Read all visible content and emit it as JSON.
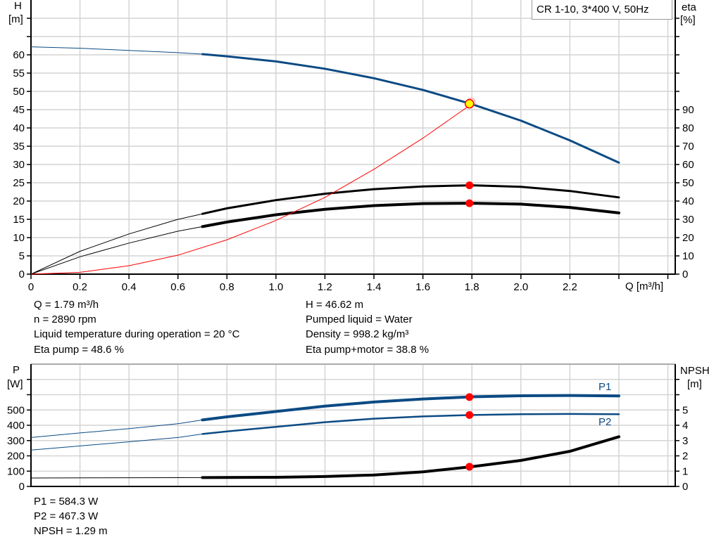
{
  "title": "CR 1-10, 3*400 V, 50Hz",
  "colors": {
    "head": "#0b4a84",
    "efficiency": "#000000",
    "system": "#ff0000",
    "duty_point": "#ffff00",
    "marker": "#ff0000",
    "grid": "#d4d4d4"
  },
  "info_top": {
    "q": "Q = 1.79 m³/h",
    "n": "n = 2890 rpm",
    "temp": "Liquid temperature during operation = 20 °C",
    "eta_pump": "Eta pump = 48.6 %",
    "h": "H = 46.62 m",
    "liquid": "Pumped liquid = Water",
    "density": "Density = 998.2 kg/m³",
    "eta_total": "Eta pump+motor = 38.8 %"
  },
  "info_bottom": {
    "p1": "P1 = 584.3 W",
    "p2": "P2 = 467.3 W",
    "npsh": "NPSH = 1.29 m"
  },
  "chart_data": [
    {
      "type": "line",
      "xlabel": "Q [m³/h]",
      "ylabel_left": [
        "H",
        "[m]"
      ],
      "ylabel_right": [
        "eta",
        "[%]"
      ],
      "xlim": [
        0,
        2.6
      ],
      "ylim_left": [
        0,
        75
      ],
      "ylim_right": [
        0,
        150
      ],
      "grid": true,
      "x_ticks": [
        "0",
        "0.2",
        "0.4",
        "0.6",
        "0.8",
        "1.0",
        "1.2",
        "1.4",
        "1.6",
        "1.8",
        "2.0",
        "2.2"
      ],
      "y_left_ticks": [
        "0",
        "5",
        "10",
        "15",
        "20",
        "25",
        "30",
        "35",
        "40",
        "45",
        "50",
        "55",
        "60"
      ],
      "y_right_ticks": [
        "0",
        "10",
        "20",
        "30",
        "40",
        "50",
        "60",
        "70",
        "80",
        "90"
      ],
      "operating_range_start": 0.7,
      "duty_point": {
        "q": 1.79,
        "h": 46.62,
        "eta_pump": 48.6,
        "eta_total": 38.8
      },
      "series": [
        {
          "key": "H",
          "axis": "left",
          "color": "#0b4a84",
          "x": [
            0,
            0.2,
            0.4,
            0.6,
            0.7,
            0.8,
            1.0,
            1.2,
            1.4,
            1.6,
            1.8,
            2.0,
            2.2,
            2.4
          ],
          "y": [
            62.2,
            61.8,
            61.2,
            60.6,
            60.2,
            59.6,
            58.2,
            56.2,
            53.6,
            50.4,
            46.5,
            42,
            36.6,
            30.5
          ]
        },
        {
          "key": "eta_pump",
          "axis": "right",
          "color": "#000000",
          "x": [
            0,
            0.2,
            0.4,
            0.6,
            0.7,
            0.8,
            1.0,
            1.2,
            1.4,
            1.6,
            1.8,
            2.0,
            2.2,
            2.4
          ],
          "y": [
            0,
            12.5,
            22,
            30,
            33,
            36,
            40.5,
            44,
            46.5,
            48,
            48.6,
            47.8,
            45.5,
            42
          ]
        },
        {
          "key": "eta_total",
          "axis": "right",
          "color": "#000000",
          "x": [
            0,
            0.2,
            0.4,
            0.6,
            0.7,
            0.8,
            1.0,
            1.2,
            1.4,
            1.6,
            1.8,
            2.0,
            2.2,
            2.4
          ],
          "y": [
            0,
            9.5,
            17,
            23.5,
            26,
            28.5,
            32.5,
            35.5,
            37.5,
            38.6,
            38.8,
            38.3,
            36.5,
            33.5
          ]
        },
        {
          "key": "system",
          "axis": "left",
          "color": "#ff0000",
          "x": [
            0,
            0.2,
            0.4,
            0.6,
            0.8,
            1.0,
            1.2,
            1.4,
            1.6,
            1.8
          ],
          "y": [
            0,
            0.5,
            2.3,
            5.2,
            9.4,
            14.7,
            21,
            28.7,
            37.2,
            46.6
          ]
        }
      ]
    },
    {
      "type": "line",
      "ylabel_left": [
        "P",
        "[W]"
      ],
      "ylabel_right": [
        "NPSH",
        "[m]"
      ],
      "xlim": [
        0,
        2.6
      ],
      "ylim_left": [
        0,
        800
      ],
      "ylim_right": [
        0,
        8
      ],
      "grid": true,
      "y_left_ticks": [
        "0",
        "100",
        "200",
        "300",
        "400",
        "500"
      ],
      "y_right_ticks": [
        "0",
        "1",
        "2",
        "3",
        "4",
        "5"
      ],
      "duty_point": {
        "q": 1.79,
        "p1": 584.3,
        "p2": 467.3,
        "npsh": 1.29
      },
      "series": [
        {
          "key": "P1",
          "name": "P1",
          "axis": "left",
          "color": "#0b4a84",
          "x": [
            0,
            0.2,
            0.4,
            0.6,
            0.7,
            0.8,
            1.0,
            1.2,
            1.4,
            1.6,
            1.8,
            2.0,
            2.2,
            2.4
          ],
          "y": [
            320,
            350,
            378,
            410,
            435,
            455,
            490,
            525,
            552,
            572,
            586,
            593,
            595,
            592
          ]
        },
        {
          "key": "P2",
          "name": "P2",
          "axis": "left",
          "color": "#0b4a84",
          "x": [
            0,
            0.2,
            0.4,
            0.6,
            0.7,
            0.8,
            1.0,
            1.2,
            1.4,
            1.6,
            1.8,
            2.0,
            2.2,
            2.4
          ],
          "y": [
            238,
            265,
            292,
            320,
            343,
            360,
            390,
            420,
            443,
            458,
            467,
            472,
            474,
            472
          ]
        },
        {
          "key": "NPSH",
          "axis": "right",
          "color": "#000000",
          "x": [
            0,
            0.7,
            1.0,
            1.2,
            1.4,
            1.6,
            1.8,
            2.0,
            2.2,
            2.4
          ],
          "y": [
            0.55,
            0.58,
            0.6,
            0.65,
            0.75,
            0.95,
            1.29,
            1.7,
            2.3,
            3.25
          ]
        }
      ]
    }
  ]
}
